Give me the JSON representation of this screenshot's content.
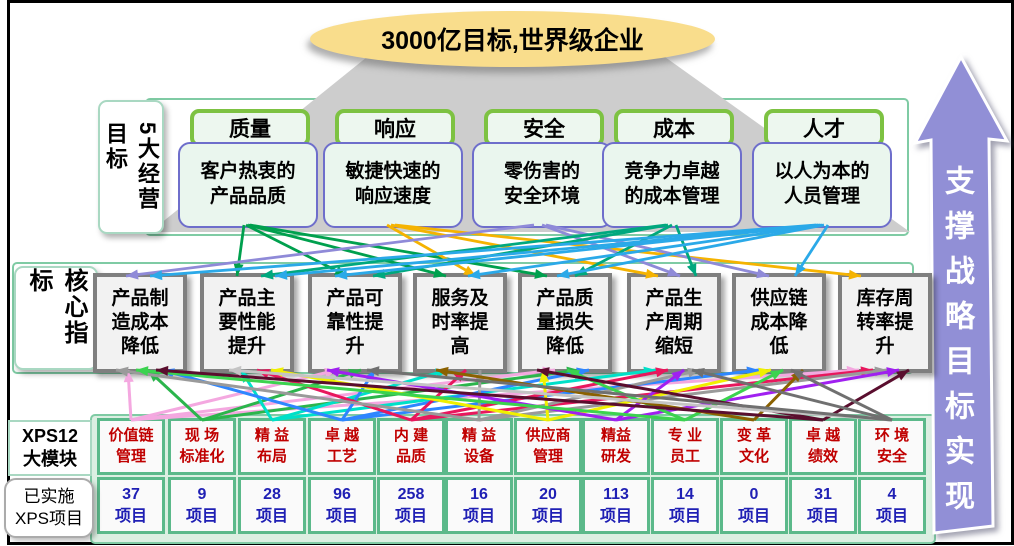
{
  "title": "3000亿目标,世界级企业",
  "side_arrow": {
    "label": "支撑战略目标实现",
    "fill": "#918FD6"
  },
  "goals": {
    "label_lines": [
      "5大经营",
      "目标"
    ],
    "items": [
      {
        "header": "质量",
        "body_lines": [
          "客户热衷的",
          "产品品质"
        ]
      },
      {
        "header": "响应",
        "body_lines": [
          "敏捷快速的",
          "响应速度"
        ]
      },
      {
        "header": "安全",
        "body_lines": [
          "零伤害的",
          "安全环境"
        ]
      },
      {
        "header": "成本",
        "body_lines": [
          "竞争力卓越",
          "的成本管理"
        ]
      },
      {
        "header": "人才",
        "body_lines": [
          "以人为本的",
          "人员管理"
        ]
      }
    ]
  },
  "indicators": {
    "label_lines": [
      "核心指标"
    ],
    "items": [
      {
        "lines": [
          "产品制",
          "造成本",
          "降低"
        ]
      },
      {
        "lines": [
          "产品主",
          "要性能",
          "提升"
        ]
      },
      {
        "lines": [
          "产品可",
          "靠性提",
          "升"
        ]
      },
      {
        "lines": [
          "服务及",
          "时率提",
          "高"
        ]
      },
      {
        "lines": [
          "产品质",
          "量损失",
          "降低"
        ]
      },
      {
        "lines": [
          "产品生",
          "产周期",
          "缩短"
        ]
      },
      {
        "lines": [
          "供应链",
          "成本降",
          "低"
        ]
      },
      {
        "lines": [
          "库存周",
          "转率提",
          "升"
        ]
      }
    ]
  },
  "modules": {
    "row1_label_lines": [
      "XPS12",
      "大模块"
    ],
    "row2_label_lines": [
      "已实施",
      "XPS项目"
    ],
    "items": [
      {
        "name_lines": [
          "价值链",
          "管理"
        ],
        "count": "37",
        "unit": "项目"
      },
      {
        "name_lines": [
          "现 场",
          "标准化"
        ],
        "count": "9",
        "unit": "项目"
      },
      {
        "name_lines": [
          "精 益",
          "布局"
        ],
        "count": "28",
        "unit": "项目"
      },
      {
        "name_lines": [
          "卓 越",
          "工艺"
        ],
        "count": "96",
        "unit": "项目"
      },
      {
        "name_lines": [
          "内 建",
          "品质"
        ],
        "count": "258",
        "unit": "项目"
      },
      {
        "name_lines": [
          "精 益",
          "设备"
        ],
        "count": "16",
        "unit": "项目"
      },
      {
        "name_lines": [
          "供应商",
          "管理"
        ],
        "count": "20",
        "unit": "项目"
      },
      {
        "name_lines": [
          "精益",
          "研发"
        ],
        "count": "113",
        "unit": "项目"
      },
      {
        "name_lines": [
          "专 业",
          "员工"
        ],
        "count": "14",
        "unit": "项目"
      },
      {
        "name_lines": [
          "变 革",
          "文化"
        ],
        "count": "0",
        "unit": "项目"
      },
      {
        "name_lines": [
          "卓 越",
          "绩效"
        ],
        "count": "31",
        "unit": "项目"
      },
      {
        "name_lines": [
          "环 境",
          "安全"
        ],
        "count": "4",
        "unit": "项目"
      }
    ]
  },
  "colors": {
    "goal_header_border": "#7DC242",
    "goal_body_border": "#6E6ECB",
    "section_border": "#7FCBA4",
    "indicator_border": "#7F7F7F",
    "module_border": "#5BB98A",
    "module_name": "#C00000",
    "module_count": "#1F1FB4",
    "ellipse_fill": "#F9DD8C",
    "arrow_fill": "#918FD6"
  },
  "edges": {
    "top": [
      {
        "f": 0,
        "t": 1,
        "c": "#00A04E",
        "fo": -4,
        "to": -10
      },
      {
        "f": 0,
        "t": 2,
        "c": "#00A04E",
        "fo": -2,
        "to": -8
      },
      {
        "f": 0,
        "t": 3,
        "c": "#00A04E",
        "fo": 0,
        "to": -14
      },
      {
        "f": 0,
        "t": 4,
        "c": "#00A04E",
        "fo": 2,
        "to": -18
      },
      {
        "f": 1,
        "t": 3,
        "c": "#F5B301",
        "fo": -6,
        "to": 16
      },
      {
        "f": 1,
        "t": 5,
        "c": "#F5B301",
        "fo": -2,
        "to": -16
      },
      {
        "f": 1,
        "t": 7,
        "c": "#F5B301",
        "fo": 2,
        "to": -24
      },
      {
        "f": 2,
        "t": 0,
        "c": "#8F8AD8",
        "fo": -8,
        "to": -14
      },
      {
        "f": 2,
        "t": 5,
        "c": "#8F8AD8",
        "fo": 0,
        "to": 6
      },
      {
        "f": 2,
        "t": 6,
        "c": "#8F8AD8",
        "fo": 4,
        "to": -10
      },
      {
        "f": 3,
        "t": 1,
        "c": "#00A87E",
        "fo": -6,
        "to": 14
      },
      {
        "f": 3,
        "t": 2,
        "c": "#00A87E",
        "fo": -4,
        "to": 18
      },
      {
        "f": 3,
        "t": 4,
        "c": "#00A87E",
        "fo": 0,
        "to": 10
      },
      {
        "f": 3,
        "t": 5,
        "c": "#00A87E",
        "fo": 4,
        "to": 22
      },
      {
        "f": 4,
        "t": 0,
        "c": "#2BA9E8",
        "fo": -6,
        "to": 10
      },
      {
        "f": 4,
        "t": 1,
        "c": "#2BA9E8",
        "fo": -4,
        "to": 28
      },
      {
        "f": 4,
        "t": 2,
        "c": "#2BA9E8",
        "fo": -2,
        "to": -20
      },
      {
        "f": 4,
        "t": 3,
        "c": "#2BA9E8",
        "fo": 0,
        "to": 8
      },
      {
        "f": 4,
        "t": 4,
        "c": "#2BA9E8",
        "fo": 2,
        "to": -8
      },
      {
        "f": 4,
        "t": 6,
        "c": "#2BA9E8",
        "fo": 6,
        "to": 16
      }
    ],
    "bottom": [
      {
        "f": 0,
        "t": 0,
        "c": "#F4A8E0",
        "to": -12
      },
      {
        "f": 0,
        "t": 2,
        "c": "#F4A8E0",
        "to": -18
      },
      {
        "f": 0,
        "t": 4,
        "c": "#F4A8E0",
        "to": -10
      },
      {
        "f": 0,
        "t": 7,
        "c": "#F4A8E0",
        "to": -26
      },
      {
        "f": 1,
        "t": 0,
        "c": "#2BB54C",
        "to": 8
      },
      {
        "f": 1,
        "t": 2,
        "c": "#2BB54C",
        "to": 6
      },
      {
        "f": 1,
        "t": 4,
        "c": "#2BB54C",
        "to": 14
      },
      {
        "f": 2,
        "t": 1,
        "c": "#00E0C8",
        "to": -6
      },
      {
        "f": 2,
        "t": 3,
        "c": "#00E0C8",
        "to": -12
      },
      {
        "f": 2,
        "t": 5,
        "c": "#00E0C8",
        "to": -18
      },
      {
        "f": 3,
        "t": 0,
        "c": "#2E86FF",
        "to": 22
      },
      {
        "f": 3,
        "t": 2,
        "c": "#2E86FF",
        "to": 20
      },
      {
        "f": 3,
        "t": 4,
        "c": "#2E86FF",
        "to": 24
      },
      {
        "f": 3,
        "t": 6,
        "c": "#2E86FF",
        "to": -20
      },
      {
        "f": 4,
        "t": 1,
        "c": "#E8175D",
        "to": 10
      },
      {
        "f": 4,
        "t": 3,
        "c": "#E8175D",
        "to": 6
      },
      {
        "f": 4,
        "t": 5,
        "c": "#E8175D",
        "to": -6
      },
      {
        "f": 4,
        "t": 7,
        "c": "#E8175D",
        "to": -12
      },
      {
        "f": 5,
        "t": 0,
        "c": "#9A9A9A",
        "to": -24
      },
      {
        "f": 5,
        "t": 3,
        "c": "#9A9A9A",
        "to": 20
      },
      {
        "f": 5,
        "t": 5,
        "c": "#9A9A9A",
        "to": 26
      },
      {
        "f": 5,
        "t": 7,
        "c": "#9A9A9A",
        "to": 2
      },
      {
        "f": 6,
        "t": 1,
        "c": "#F0F000",
        "to": 24
      },
      {
        "f": 6,
        "t": 4,
        "c": "#F0F000",
        "to": -22
      },
      {
        "f": 6,
        "t": 6,
        "c": "#F0F000",
        "to": -8
      },
      {
        "f": 7,
        "t": 2,
        "c": "#A020F0",
        "to": -28
      },
      {
        "f": 7,
        "t": 5,
        "c": "#A020F0",
        "to": 10
      },
      {
        "f": 7,
        "t": 7,
        "c": "#A020F0",
        "to": 14
      },
      {
        "f": 8,
        "t": 0,
        "c": "#3BD34F",
        "to": -4
      },
      {
        "f": 8,
        "t": 4,
        "c": "#3BD34F",
        "to": 2
      },
      {
        "f": 8,
        "t": 6,
        "c": "#3BD34F",
        "to": 4
      },
      {
        "f": 9,
        "t": 3,
        "c": "#8B6100",
        "to": -24
      },
      {
        "f": 9,
        "t": 6,
        "c": "#8B6100",
        "to": 24
      },
      {
        "f": 10,
        "t": 0,
        "c": "#5A0E2E",
        "to": 16
      },
      {
        "f": 10,
        "t": 4,
        "c": "#5A0E2E",
        "to": -28
      },
      {
        "f": 10,
        "t": 7,
        "c": "#5A0E2E",
        "to": 24
      },
      {
        "f": 11,
        "t": 1,
        "c": "#C4C4C4",
        "to": -18
      },
      {
        "f": 11,
        "t": 2,
        "c": "#707070",
        "to": 12
      },
      {
        "f": 11,
        "t": 5,
        "c": "#707070",
        "to": 18
      },
      {
        "f": 11,
        "t": 6,
        "c": "#707070",
        "to": 12
      }
    ]
  }
}
